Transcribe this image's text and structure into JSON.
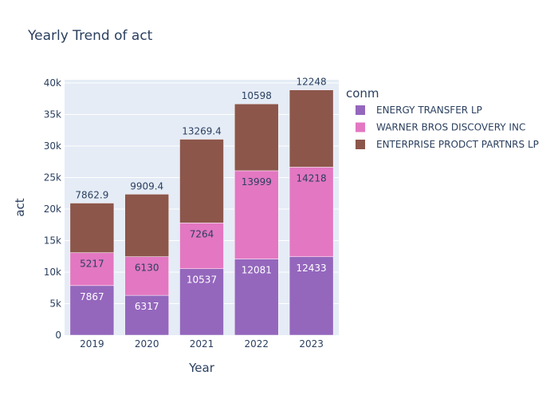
{
  "chart_data": {
    "type": "bar",
    "stacked": true,
    "title": "Yearly Trend of act",
    "xlabel": "Year",
    "ylabel": "act",
    "categories": [
      "2019",
      "2020",
      "2021",
      "2022",
      "2023"
    ],
    "ylim": [
      0,
      40500
    ],
    "yticks": [
      0,
      5000,
      10000,
      15000,
      20000,
      25000,
      30000,
      35000,
      40000
    ],
    "ytick_labels": [
      "0",
      "5k",
      "10k",
      "15k",
      "20k",
      "25k",
      "30k",
      "35k",
      "40k"
    ],
    "legend_title": "conm",
    "legend_position": "right",
    "grid": true,
    "plot_bgcolor": "#e5ecf6",
    "series": [
      {
        "name": "ENERGY TRANSFER LP",
        "color": "#9467bd",
        "values": [
          7867,
          6317,
          10537,
          12081,
          12433
        ],
        "labels": [
          "7867",
          "6317",
          "10537",
          "12081",
          "12433"
        ],
        "label_position": "inside"
      },
      {
        "name": "WARNER BROS DISCOVERY INC",
        "color": "#e377c2",
        "values": [
          5217,
          6130,
          7264,
          13999,
          14218
        ],
        "labels": [
          "5217",
          "6130",
          "7264",
          "13999",
          "14218"
        ],
        "label_position": "inside"
      },
      {
        "name": "ENTERPRISE PRODCT PARTNRS LP",
        "color": "#8c564b",
        "values": [
          7862.9,
          9909.4,
          13269.4,
          10598,
          12248
        ],
        "labels": [
          "7862.9",
          "9909.4",
          "13269.4",
          "10598",
          "12248"
        ],
        "label_position": "outside"
      }
    ]
  }
}
